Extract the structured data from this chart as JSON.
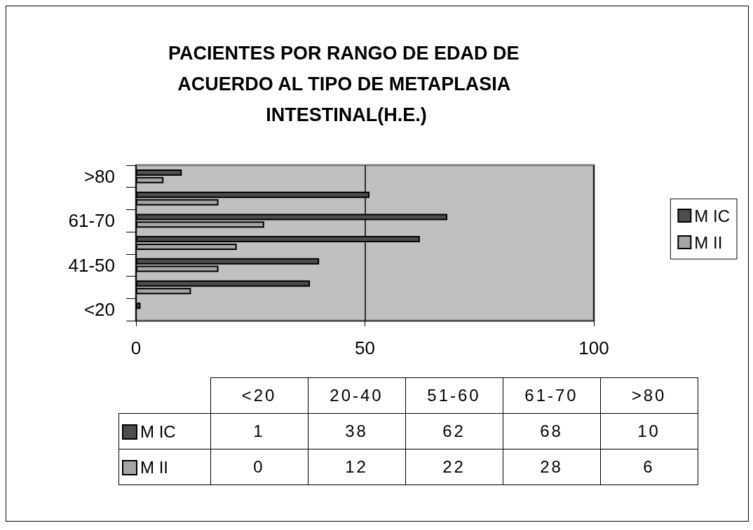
{
  "chart_data": [
    {
      "type": "bar",
      "orientation": "horizontal",
      "title": "PACIENTES POR RANGO DE EDAD DE ACUERDO AL TIPO DE METAPLASIA INTESTINAL(H.E.)",
      "categories": [
        ">80",
        null,
        "61-70",
        null,
        "41-50",
        null,
        "<20"
      ],
      "series": [
        {
          "name": "M IC",
          "color": "#4d4d4d",
          "values": [
            10,
            51,
            68,
            62,
            40,
            38,
            1
          ]
        },
        {
          "name": "M II",
          "color": "#a6a6a6",
          "values": [
            6,
            18,
            28,
            22,
            18,
            12,
            0
          ]
        }
      ],
      "xlim": [
        0,
        100
      ],
      "xticks": [
        0,
        50,
        100
      ],
      "grid": "x",
      "legend": "right"
    },
    {
      "type": "other",
      "data_labels": true,
      "categories": [
        "<20",
        "20-40",
        "51-60",
        "61-70",
        ">80"
      ],
      "series": [
        {
          "name": "M IC",
          "color": "#4d4d4d",
          "values": [
            1,
            38,
            62,
            68,
            10
          ]
        },
        {
          "name": "M II",
          "color": "#a6a6a6",
          "values": [
            0,
            12,
            22,
            28,
            6
          ]
        }
      ]
    }
  ]
}
